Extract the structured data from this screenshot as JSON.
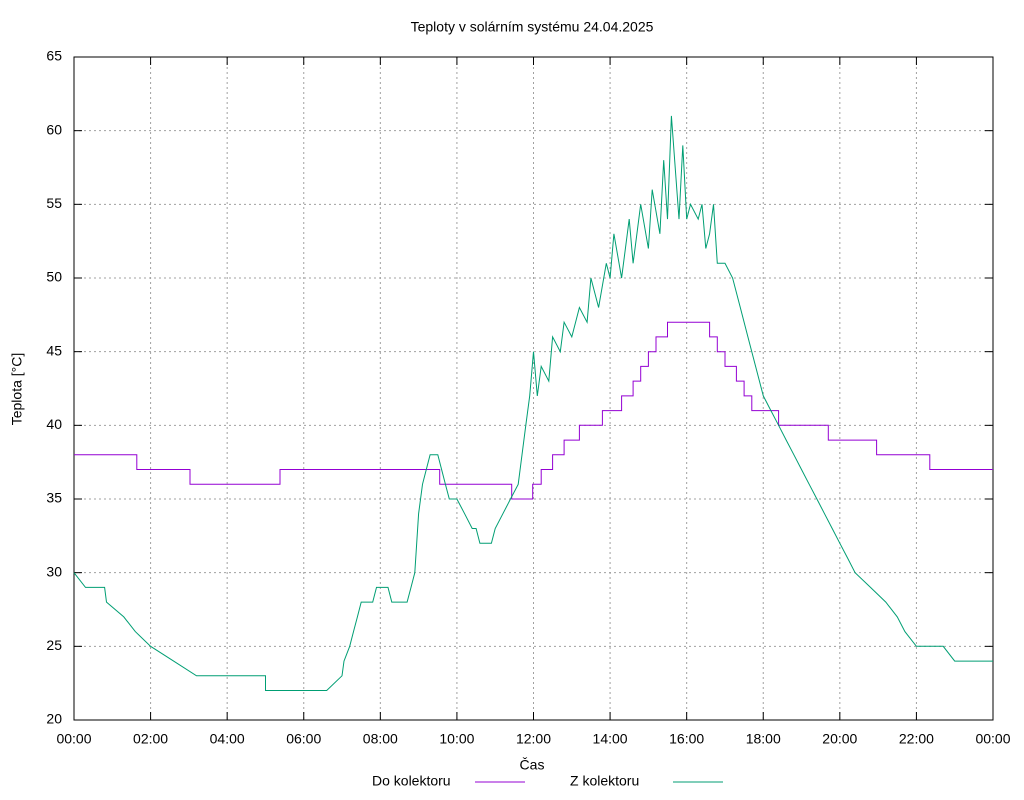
{
  "chart_data": {
    "type": "line",
    "title": "Teploty v solárním systému 24.04.2025",
    "x_label": "Čas",
    "y_label": "Teplota [°C]",
    "xlim": [
      0,
      24
    ],
    "ylim": [
      20,
      65
    ],
    "xticks": [
      {
        "value": 0,
        "label": "00:00"
      },
      {
        "value": 2,
        "label": "02:00"
      },
      {
        "value": 4,
        "label": "04:00"
      },
      {
        "value": 6,
        "label": "06:00"
      },
      {
        "value": 8,
        "label": "08:00"
      },
      {
        "value": 10,
        "label": "10:00"
      },
      {
        "value": 12,
        "label": "12:00"
      },
      {
        "value": 14,
        "label": "14:00"
      },
      {
        "value": 16,
        "label": "16:00"
      },
      {
        "value": 18,
        "label": "18:00"
      },
      {
        "value": 20,
        "label": "20:00"
      },
      {
        "value": 22,
        "label": "22:00"
      },
      {
        "value": 24,
        "label": "00:00"
      }
    ],
    "yticks": [
      20,
      25,
      30,
      35,
      40,
      45,
      50,
      55,
      60,
      65
    ],
    "grid": true,
    "legend": "bottom",
    "series": [
      {
        "name": "Do kolektoru",
        "color": "#9400d3",
        "x": [
          0,
          1.64,
          1.64,
          3.03,
          3.03,
          5.38,
          5.38,
          9.55,
          9.55,
          11.43,
          11.43,
          11.98,
          11.98,
          12.2,
          12.2,
          12.5,
          12.5,
          12.8,
          12.8,
          13.2,
          13.2,
          13.8,
          13.8,
          14.3,
          14.3,
          14.6,
          14.6,
          14.8,
          14.8,
          15.0,
          15.0,
          15.2,
          15.2,
          15.5,
          15.5,
          15.7,
          15.7,
          16.6,
          16.6,
          16.8,
          16.8,
          17.0,
          17.0,
          17.3,
          17.3,
          17.5,
          17.5,
          17.7,
          17.7,
          18.0,
          18.0,
          18.4,
          18.4,
          19.7,
          19.7,
          20.96,
          20.96,
          22.35,
          22.35,
          24
        ],
        "values": [
          38,
          38,
          37,
          37,
          36,
          36,
          37,
          37,
          36,
          36,
          35,
          35,
          36,
          36,
          37,
          37,
          38,
          38,
          39,
          39,
          40,
          40,
          41,
          41,
          42,
          42,
          43,
          43,
          44,
          44,
          45,
          45,
          46,
          46,
          47,
          47,
          47,
          47,
          46,
          46,
          45,
          45,
          44,
          44,
          43,
          43,
          42,
          42,
          41,
          41,
          41,
          41,
          40,
          40,
          39,
          39,
          38,
          38,
          37,
          37
        ]
      },
      {
        "name": "Z kolektoru",
        "color": "#009e73",
        "x": [
          0,
          0.3,
          0.8,
          0.85,
          1.3,
          1.6,
          2.0,
          2.6,
          3.2,
          5.0,
          5.0,
          6.6,
          7.0,
          7.05,
          7.2,
          7.3,
          7.4,
          7.5,
          7.8,
          7.9,
          8.2,
          8.3,
          8.7,
          8.8,
          8.9,
          8.95,
          9.0,
          9.1,
          9.2,
          9.3,
          9.5,
          9.6,
          9.7,
          9.8,
          10.0,
          10.2,
          10.4,
          10.5,
          10.6,
          10.9,
          11.0,
          11.2,
          11.4,
          11.6,
          11.7,
          11.8,
          11.9,
          12.0,
          12.1,
          12.2,
          12.4,
          12.5,
          12.7,
          12.8,
          13.0,
          13.2,
          13.4,
          13.5,
          13.7,
          13.9,
          14.0,
          14.1,
          14.3,
          14.5,
          14.6,
          14.8,
          15.0,
          15.1,
          15.3,
          15.4,
          15.5,
          15.6,
          15.8,
          15.9,
          16.0,
          16.1,
          16.3,
          16.4,
          16.5,
          16.6,
          16.7,
          16.8,
          17.0,
          17.2,
          17.4,
          17.6,
          17.8,
          18.0,
          18.2,
          18.4,
          18.6,
          18.8,
          19.0,
          19.2,
          19.4,
          19.6,
          19.8,
          20.0,
          20.2,
          20.4,
          20.8,
          21.2,
          21.5,
          21.7,
          22.0,
          22.7,
          23.0,
          24
        ],
        "values": [
          30,
          29,
          29,
          28,
          27,
          26,
          25,
          24,
          23,
          23,
          22,
          22,
          23,
          24,
          25,
          26,
          27,
          28,
          28,
          29,
          29,
          28,
          28,
          29,
          30,
          32,
          34,
          36,
          37,
          38,
          38,
          37,
          36,
          35,
          35,
          34,
          33,
          33,
          32,
          32,
          33,
          34,
          35,
          36,
          38,
          40,
          42,
          45,
          42,
          44,
          43,
          46,
          45,
          47,
          46,
          48,
          47,
          50,
          48,
          51,
          50,
          53,
          50,
          54,
          51,
          55,
          52,
          56,
          53,
          58,
          54,
          61,
          54,
          59,
          54,
          55,
          54,
          55,
          52,
          53,
          55,
          51,
          51,
          50,
          48,
          46,
          44,
          42,
          41,
          40,
          39,
          38,
          37,
          36,
          35,
          34,
          33,
          32,
          31,
          30,
          29,
          28,
          27,
          26,
          25,
          25,
          24,
          24
        ]
      }
    ]
  }
}
